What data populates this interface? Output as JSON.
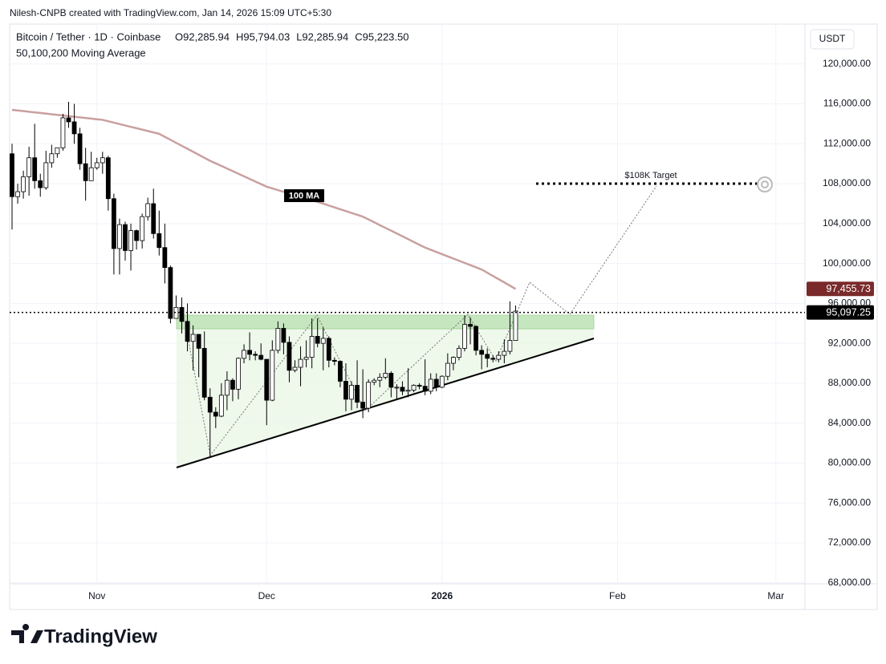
{
  "chart_data": {
    "type": "candlestick",
    "attribution": "Nilesh-CNPB created with TradingView.com, Jan 14, 2026 15:09 UTC+5:30",
    "symbol": "Bitcoin / Tether · 1D · Coinbase",
    "ohlc_header": [
      "O92,285.94",
      "H95,794.03",
      "L92,285.94",
      "C95,223.50"
    ],
    "indicator": "50,100,200 Moving Average",
    "currency": "USDT",
    "brand": "TradingView",
    "annotations": [
      "$108K Target"
    ],
    "categories": [
      null,
      null,
      null,
      null,
      null,
      null,
      null,
      null,
      null,
      null,
      null,
      null,
      null,
      null,
      null,
      "Nov",
      null,
      null,
      null,
      null,
      null,
      null,
      null,
      null,
      null,
      null,
      null,
      null,
      null,
      null,
      null,
      null,
      null,
      null,
      null,
      null,
      null,
      null,
      null,
      null,
      null,
      null,
      null,
      null,
      null,
      "Dec",
      null,
      null,
      null,
      null,
      null,
      null,
      null,
      null,
      null,
      null,
      null,
      null,
      null,
      null,
      null,
      null,
      null,
      null,
      null,
      null,
      null,
      null,
      null,
      null,
      null,
      null,
      null,
      null,
      null,
      null,
      "2026",
      null,
      null,
      null,
      null,
      null,
      null,
      null,
      null,
      null,
      null,
      null,
      null,
      null,
      null,
      null,
      null,
      null,
      null,
      null,
      null,
      null,
      null,
      null,
      null,
      null,
      null,
      null,
      null,
      null,
      null,
      "Feb",
      null,
      null,
      null,
      null,
      null,
      null,
      null,
      null,
      null,
      null,
      null,
      null,
      null,
      null,
      null,
      null,
      null,
      null,
      null,
      null,
      null,
      null,
      null,
      null,
      null,
      null,
      null,
      "Mar",
      null,
      null,
      null,
      null
    ],
    "open": [
      111000,
      106700,
      107200,
      108700,
      110600,
      108300,
      107600,
      110100,
      111000,
      111600,
      114600,
      114200,
      113000,
      110000,
      108300,
      109600,
      110100,
      110600,
      106500,
      101500,
      103900,
      101300,
      103300,
      102300,
      104700,
      106000,
      103000,
      101600,
      99600,
      94500,
      95600,
      94200,
      92200,
      92900,
      91500,
      86600,
      85100,
      84700,
      86800,
      88300,
      87400,
      90500,
      91300,
      90900,
      90800,
      90400,
      86300,
      91300,
      93500,
      92100,
      89300,
      89600,
      90400,
      90600,
      92700,
      92000,
      92500,
      90300,
      90200,
      88200,
      86400,
      87800,
      86100,
      85500,
      88100,
      88300,
      88600,
      89000,
      87600,
      87600,
      87200,
      87300,
      87800,
      87700,
      87200,
      88400,
      87600,
      88700,
      90000,
      90600,
      91500,
      93900,
      93700,
      91300,
      90900,
      90500,
      90400,
      90800,
      91200,
      92285.94,
      null,
      null,
      null,
      null,
      null,
      null,
      null,
      null,
      null,
      null,
      null,
      null,
      null,
      null,
      null,
      null,
      null,
      null,
      null,
      null,
      null,
      null,
      null,
      null,
      null,
      null,
      null,
      null,
      null,
      null,
      null,
      null,
      null,
      null,
      null,
      null,
      null,
      null,
      null,
      null,
      null,
      null,
      null,
      null,
      null,
      null,
      null,
      null,
      null,
      null
    ],
    "high": [
      112000,
      108000,
      109300,
      111700,
      114000,
      109000,
      111300,
      111900,
      111600,
      115000,
      116200,
      116000,
      113600,
      111600,
      111200,
      110600,
      111200,
      110800,
      107000,
      104500,
      104200,
      104000,
      103400,
      105000,
      106600,
      107500,
      105300,
      104000,
      99800,
      96800,
      96600,
      96000,
      93800,
      92900,
      93200,
      87500,
      85600,
      88000,
      89200,
      88500,
      90600,
      91900,
      93100,
      91200,
      92000,
      90400,
      92300,
      94200,
      94000,
      92700,
      90300,
      91700,
      92300,
      94500,
      94500,
      93600,
      92700,
      90600,
      90300,
      90000,
      88200,
      90300,
      89400,
      88400,
      88500,
      89000,
      90500,
      89200,
      87900,
      88200,
      89500,
      87900,
      88000,
      90400,
      89000,
      89000,
      88800,
      91000,
      90700,
      91800,
      94800,
      94600,
      93800,
      91800,
      91500,
      90800,
      91200,
      92400,
      96200,
      95794.03,
      null,
      null,
      null,
      null,
      null,
      null,
      null,
      null,
      null,
      null,
      null,
      null,
      null,
      null,
      null,
      null,
      null,
      null,
      null,
      null,
      null,
      null,
      null,
      null,
      null,
      null,
      null,
      null,
      null,
      null,
      null,
      null,
      null,
      null,
      null,
      null,
      null,
      null,
      null,
      null,
      null,
      null,
      null,
      null,
      null,
      null,
      null,
      null,
      null,
      null
    ],
    "low": [
      103400,
      106000,
      106500,
      106800,
      107500,
      106700,
      107400,
      109600,
      110600,
      111300,
      113600,
      112000,
      109400,
      106300,
      108300,
      109400,
      109000,
      105300,
      98900,
      98900,
      100300,
      99300,
      101400,
      101500,
      104300,
      102500,
      100800,
      98000,
      94000,
      94500,
      93000,
      91200,
      89300,
      88600,
      86300,
      80600,
      83500,
      84600,
      85300,
      86200,
      86400,
      90000,
      90300,
      90300,
      90300,
      83800,
      86200,
      91000,
      90900,
      88100,
      89100,
      87700,
      89600,
      89500,
      91600,
      89300,
      89600,
      89800,
      87600,
      85200,
      85300,
      85500,
      84500,
      85100,
      87800,
      87600,
      88400,
      86600,
      86400,
      86800,
      86600,
      87100,
      87400,
      86800,
      86900,
      87200,
      87500,
      88300,
      89300,
      90300,
      91200,
      91900,
      90800,
      89400,
      89600,
      90100,
      90100,
      90000,
      90900,
      92285.94,
      null,
      null,
      null,
      null,
      null,
      null,
      null,
      null,
      null,
      null,
      null,
      null,
      null,
      null,
      null,
      null,
      null,
      null,
      null,
      null,
      null,
      null,
      null,
      null,
      null,
      null,
      null,
      null,
      null,
      null,
      null,
      null,
      null,
      null,
      null,
      null,
      null,
      null,
      null,
      null,
      null,
      null,
      null,
      null,
      null,
      null,
      null,
      null,
      null,
      null
    ],
    "close": [
      106700,
      107200,
      108700,
      110600,
      108300,
      107600,
      110100,
      111000,
      111600,
      114600,
      114200,
      113000,
      110000,
      108300,
      109600,
      110100,
      110600,
      106500,
      101500,
      103900,
      101300,
      103300,
      102300,
      104700,
      106000,
      103000,
      101600,
      99600,
      94500,
      95600,
      94200,
      92200,
      92900,
      91500,
      86600,
      85100,
      84700,
      86800,
      88300,
      87400,
      90500,
      91300,
      90900,
      90800,
      90400,
      86300,
      91300,
      93500,
      92100,
      89300,
      89600,
      90400,
      90600,
      92700,
      92000,
      92500,
      90300,
      90200,
      88200,
      86400,
      87800,
      86100,
      85500,
      88100,
      88300,
      88600,
      89000,
      87600,
      87600,
      87200,
      87300,
      87800,
      87700,
      87200,
      88400,
      87600,
      88700,
      90000,
      90600,
      91500,
      93900,
      93700,
      91300,
      90900,
      90500,
      90400,
      90800,
      91200,
      92300,
      95223.5,
      null,
      null,
      null,
      null,
      null,
      null,
      null,
      null,
      null,
      null,
      null,
      null,
      null,
      null,
      null,
      null,
      null,
      null,
      null,
      null,
      null,
      null,
      null,
      null,
      null,
      null,
      null,
      null,
      null,
      null,
      null,
      null,
      null,
      null,
      null,
      null,
      null,
      null,
      null,
      null,
      null,
      null,
      null,
      null,
      null,
      null,
      null,
      null,
      null,
      null
    ],
    "up_color": "#ffffff",
    "down_color": "#000000",
    "moving_average": {
      "name": "100 MA",
      "color": "#c9a0a0",
      "values": [
        115400,
        115340,
        115280,
        115210,
        115150,
        115090,
        115030,
        114960,
        114900,
        114840,
        114780,
        114710,
        114650,
        114590,
        114530,
        114460,
        114400,
        114260,
        114120,
        113980,
        113840,
        113700,
        113560,
        113420,
        113280,
        113140,
        113000,
        112700,
        112400,
        112100,
        111800,
        111500,
        111200,
        110900,
        110600,
        110300,
        110040,
        109780,
        109520,
        109260,
        109000,
        108740,
        108480,
        108220,
        107960,
        107700,
        107530,
        107360,
        107190,
        107020,
        106850,
        106680,
        106510,
        106340,
        106170,
        106000,
        105810,
        105630,
        105440,
        105260,
        105070,
        104890,
        104700,
        104420,
        104140,
        103850,
        103570,
        103290,
        103010,
        102730,
        102450,
        102160,
        101880,
        101600,
        101380,
        101160,
        100940,
        100720,
        100500,
        100280,
        100060,
        99840,
        99620,
        99400,
        99080,
        98750,
        98430,
        98110,
        97780,
        97455.73,
        null,
        null,
        null,
        null,
        null,
        null,
        null,
        null,
        null,
        null,
        null,
        null,
        null,
        null,
        null,
        null,
        null,
        null,
        null,
        null,
        null,
        null,
        null,
        null,
        null,
        null,
        null,
        null,
        null,
        null,
        null,
        null,
        null,
        null,
        null,
        null,
        null,
        null,
        null,
        null,
        null,
        null,
        null,
        null,
        null,
        null,
        null,
        null,
        null,
        null
      ]
    },
    "price_labels": [
      {
        "value": 97455.73,
        "label": "97,455.73",
        "color": "#7a2a2a",
        "line": false
      },
      {
        "value": 95097.25,
        "label": "95,097.25",
        "color": "#000000",
        "line": true
      }
    ],
    "ylim": [
      67900,
      124000
    ],
    "yticks": [
      {
        "value": 68000,
        "label": "68,000.00"
      },
      {
        "value": 72000,
        "label": "72,000.00"
      },
      {
        "value": 76000,
        "label": "76,000.00"
      },
      {
        "value": 80000,
        "label": "80,000.00"
      },
      {
        "value": 84000,
        "label": "84,000.00"
      },
      {
        "value": 88000,
        "label": "88,000.00"
      },
      {
        "value": 92000,
        "label": "92,000.00"
      },
      {
        "value": 96000,
        "label": "96,000.00"
      },
      {
        "value": 100000,
        "label": "100,000.00"
      },
      {
        "value": 104000,
        "label": "104,000.00"
      },
      {
        "value": 108000,
        "label": "108,000.00"
      },
      {
        "value": 112000,
        "label": "112,000.00"
      },
      {
        "value": 116000,
        "label": "116,000.00"
      },
      {
        "value": 120000,
        "label": "120,000.00"
      }
    ],
    "grid": true
  }
}
